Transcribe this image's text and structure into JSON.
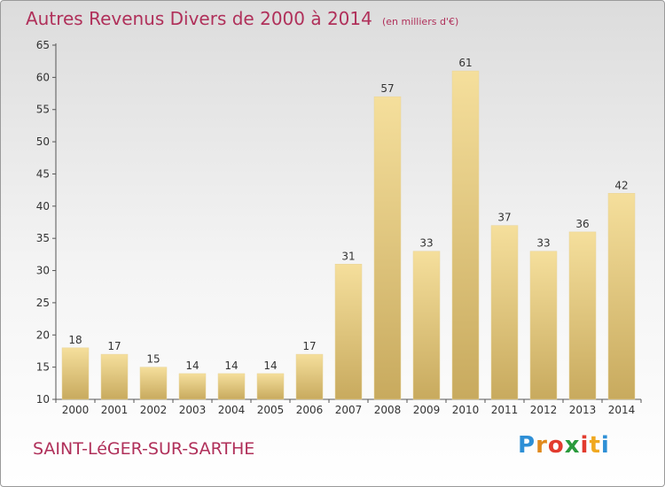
{
  "title": "Autres Revenus Divers de 2000 à 2014",
  "unit_note": "(en milliers d'€)",
  "commune": "SAINT-LéGER-SUR-SARTHE",
  "logo": {
    "letters": [
      "P",
      "r",
      "o",
      "x",
      "i",
      "t",
      "i"
    ],
    "colors": [
      "#2e8fd6",
      "#e08a1e",
      "#e23b2e",
      "#2a9a3c",
      "#e23b2e",
      "#f0a820",
      "#2e8fd6"
    ]
  },
  "colors": {
    "bar_light": "#f5df9c",
    "bar_dark": "#c8aa5e",
    "title": "#b0305a"
  },
  "chart_data": {
    "type": "bar",
    "title": "Autres Revenus Divers de 2000 à 2014",
    "xlabel": "",
    "ylabel": "",
    "categories": [
      "2000",
      "2001",
      "2002",
      "2003",
      "2004",
      "2005",
      "2006",
      "2007",
      "2008",
      "2009",
      "2010",
      "2011",
      "2012",
      "2013",
      "2014"
    ],
    "values": [
      18,
      17,
      15,
      14,
      14,
      14,
      17,
      31,
      57,
      33,
      61,
      37,
      33,
      36,
      42
    ],
    "ylim": [
      10,
      65
    ],
    "yticks": [
      10,
      15,
      20,
      25,
      30,
      35,
      40,
      45,
      50,
      55,
      60,
      65
    ],
    "grid": false,
    "legend": "none"
  }
}
